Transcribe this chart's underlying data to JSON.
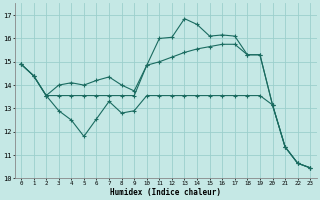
{
  "xlabel": "Humidex (Indice chaleur)",
  "xlim": [
    -0.5,
    23.5
  ],
  "ylim": [
    10,
    17.5
  ],
  "yticks": [
    10,
    11,
    12,
    13,
    14,
    15,
    16,
    17
  ],
  "xticks": [
    0,
    1,
    2,
    3,
    4,
    5,
    6,
    7,
    8,
    9,
    10,
    11,
    12,
    13,
    14,
    15,
    16,
    17,
    18,
    19,
    20,
    21,
    22,
    23
  ],
  "bg_color": "#c5e8e5",
  "grid_color": "#9ccfcc",
  "line_color": "#1a6b60",
  "line1_x": [
    0,
    1,
    2,
    3,
    4,
    5,
    6,
    7,
    8,
    9,
    10,
    11,
    12,
    13,
    14,
    15,
    16,
    17,
    18,
    19,
    20,
    21,
    22,
    23
  ],
  "line1_y": [
    14.9,
    14.4,
    13.55,
    13.55,
    13.55,
    13.55,
    13.55,
    13.55,
    13.55,
    13.55,
    14.85,
    16.0,
    16.05,
    16.85,
    16.6,
    16.1,
    16.15,
    16.1,
    15.3,
    15.3,
    13.15,
    11.35,
    10.65,
    10.45
  ],
  "line2_x": [
    0,
    1,
    2,
    3,
    4,
    5,
    6,
    7,
    8,
    9,
    10,
    11,
    12,
    13,
    14,
    15,
    16,
    17,
    18,
    19,
    20,
    21,
    22,
    23
  ],
  "line2_y": [
    14.9,
    14.4,
    13.55,
    14.0,
    14.1,
    14.0,
    14.2,
    14.35,
    14.0,
    13.75,
    14.85,
    15.0,
    15.2,
    15.4,
    15.55,
    15.65,
    15.75,
    15.75,
    15.3,
    15.3,
    13.15,
    11.35,
    10.65,
    10.45
  ],
  "line3_x": [
    0,
    1,
    2,
    3,
    4,
    5,
    6,
    7,
    8,
    9,
    10,
    11,
    12,
    13,
    14,
    15,
    16,
    17,
    18,
    19,
    20,
    21,
    22,
    23
  ],
  "line3_y": [
    14.9,
    14.4,
    13.55,
    12.9,
    12.5,
    11.8,
    12.55,
    13.3,
    12.8,
    12.9,
    13.55,
    13.55,
    13.55,
    13.55,
    13.55,
    13.55,
    13.55,
    13.55,
    13.55,
    13.55,
    13.15,
    11.35,
    10.65,
    10.45
  ]
}
